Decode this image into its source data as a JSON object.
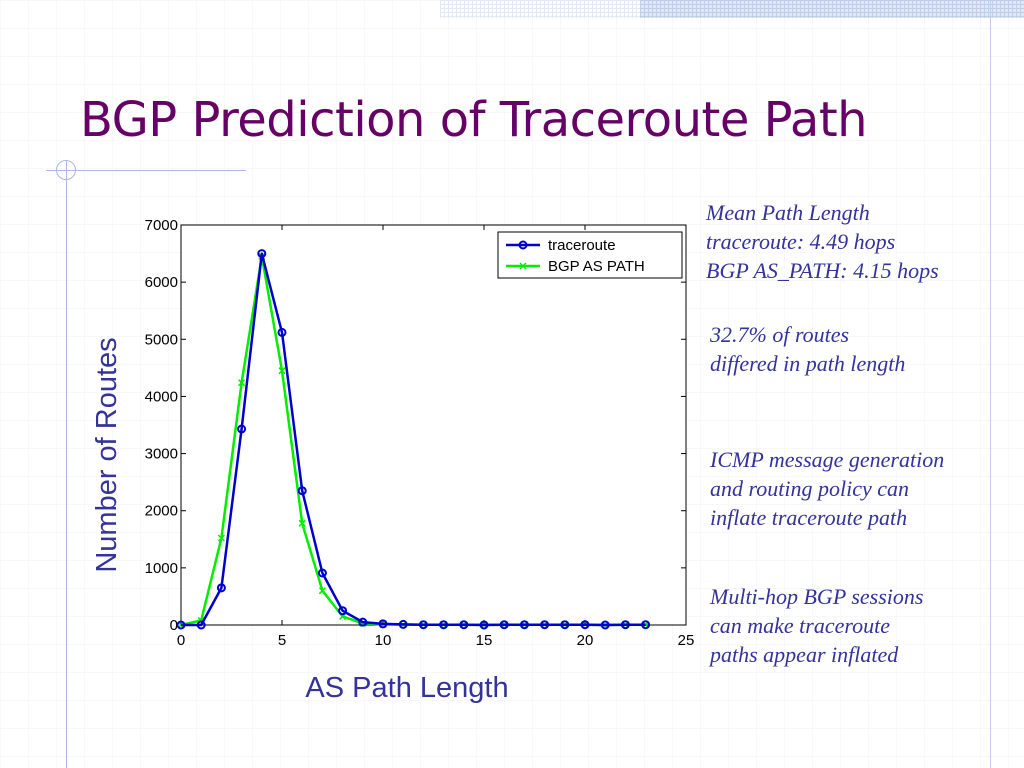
{
  "slide": {
    "title": "BGP Prediction of Traceroute Path"
  },
  "notes": {
    "mean_path": [
      "Mean Path Length",
      "traceroute: 4.49 hops",
      "BGP AS_PATH: 4.15 hops"
    ],
    "differed": [
      "32.7% of routes",
      "differed in path length"
    ],
    "icmp": [
      "ICMP message generation",
      "and routing policy can",
      "inflate traceroute path"
    ],
    "multihop": [
      "Multi-hop BGP sessions",
      "can make traceroute",
      "paths appear inflated"
    ]
  },
  "colors": {
    "title": "#660066",
    "notes": "#333399",
    "axis_labels": "#333399",
    "traceroute": "#0000cc",
    "bgp": "#00ee00"
  },
  "chart_data": {
    "type": "line",
    "xlabel": "AS Path Length",
    "ylabel": "Number of Routes",
    "xlim": [
      0,
      25
    ],
    "ylim": [
      0,
      7000
    ],
    "xticks": [
      0,
      5,
      10,
      15,
      20,
      25
    ],
    "yticks": [
      0,
      1000,
      2000,
      3000,
      4000,
      5000,
      6000,
      7000
    ],
    "grid": false,
    "legend": "top-right",
    "series": [
      {
        "name": "traceroute",
        "marker": "circle",
        "color": "#0000cc",
        "x": [
          0,
          1,
          2,
          3,
          4,
          5,
          6,
          7,
          8,
          9,
          10,
          11,
          12,
          13,
          14,
          15,
          16,
          17,
          18,
          19,
          20,
          21,
          22,
          23
        ],
        "y": [
          0,
          0,
          650,
          3430,
          6500,
          5120,
          2350,
          910,
          250,
          50,
          20,
          10,
          5,
          5,
          5,
          0,
          5,
          5,
          5,
          5,
          5,
          0,
          5,
          5
        ]
      },
      {
        "name": "BGP AS PATH",
        "marker": "x",
        "color": "#00ee00",
        "x": [
          0,
          1,
          2,
          3,
          4,
          5,
          6,
          7,
          8,
          9,
          10,
          11,
          12,
          13,
          14,
          15,
          16,
          17,
          18,
          19,
          20,
          21,
          22,
          23
        ],
        "y": [
          0,
          80,
          1520,
          4240,
          6450,
          4450,
          1780,
          600,
          150,
          30,
          10,
          5,
          5,
          5,
          5,
          5,
          5,
          5,
          5,
          5,
          5,
          0,
          5,
          5
        ]
      }
    ]
  }
}
